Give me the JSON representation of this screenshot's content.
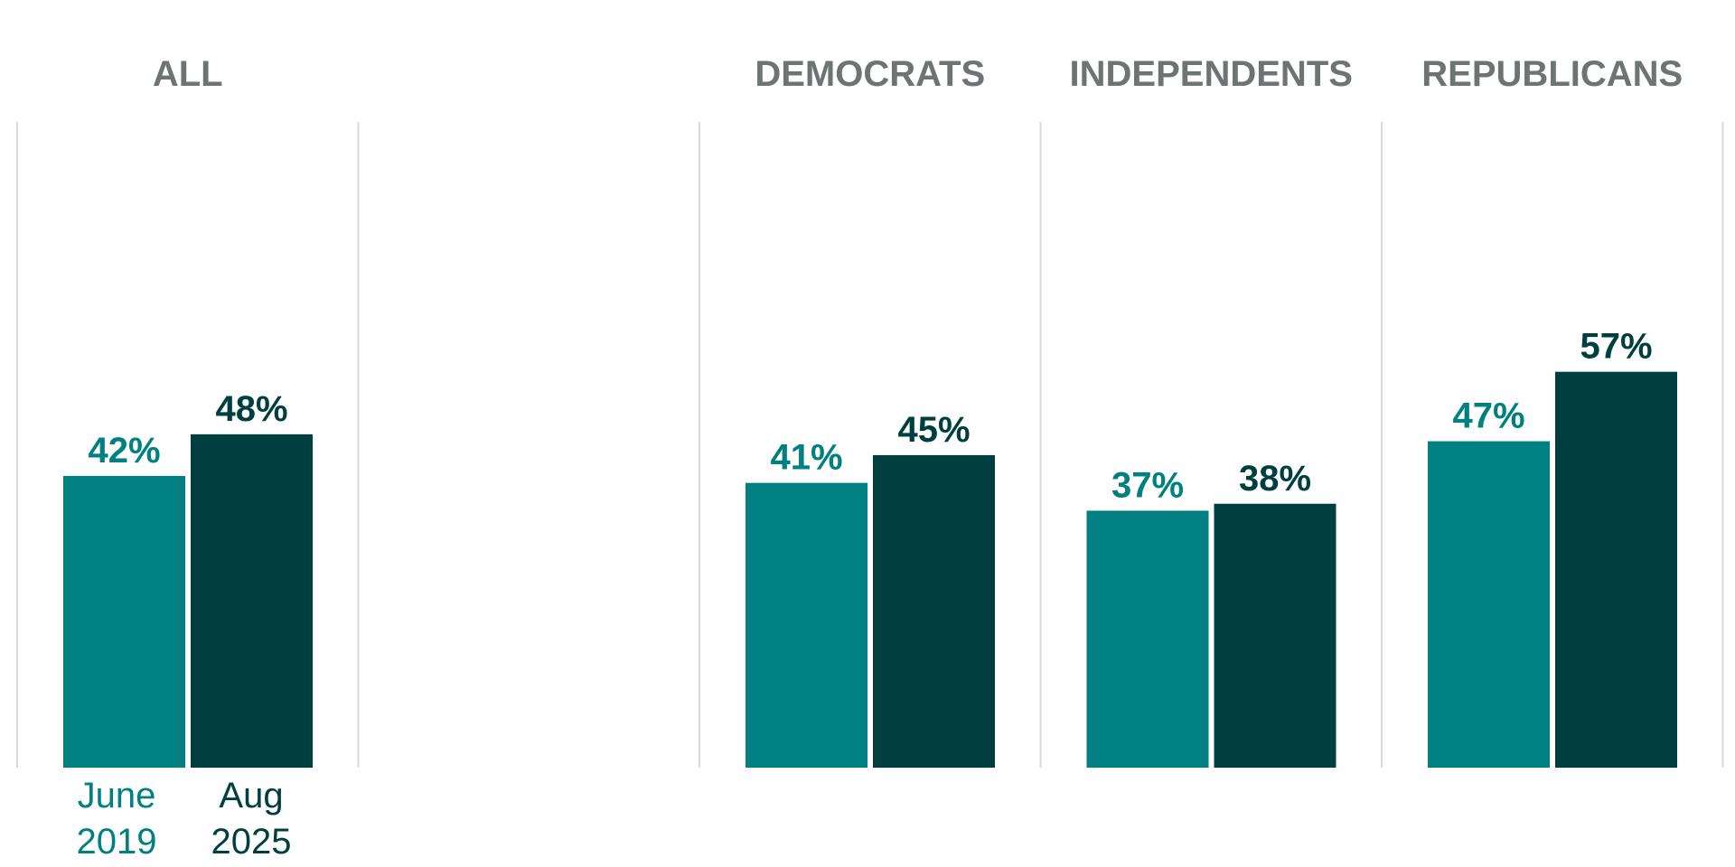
{
  "chart_data": {
    "type": "bar",
    "categories": [
      "ALL",
      "",
      "DEMOCRATS",
      "INDEPENDENTS",
      "REPUBLICANS"
    ],
    "series": [
      {
        "name": "June 2019",
        "values": [
          42,
          null,
          41,
          37,
          47
        ],
        "labels": [
          "42%",
          "",
          "41%",
          "37%",
          "47%"
        ]
      },
      {
        "name": "Aug 2025",
        "values": [
          48,
          null,
          45,
          38,
          57
        ],
        "labels": [
          "48%",
          "",
          "45%",
          "38%",
          "57%"
        ]
      }
    ],
    "ylim": [
      0,
      65
    ],
    "grid": "vertical separators",
    "legend": {
      "placement": "bottom-left",
      "entries": [
        {
          "line1": "June",
          "line2": "2019"
        },
        {
          "line1": "Aug",
          "line2": "2025"
        }
      ]
    },
    "colors": {
      "series1": "#008080",
      "series2": "#003f3f",
      "title": "#6e7474",
      "grid": "#d9d9d9"
    }
  }
}
